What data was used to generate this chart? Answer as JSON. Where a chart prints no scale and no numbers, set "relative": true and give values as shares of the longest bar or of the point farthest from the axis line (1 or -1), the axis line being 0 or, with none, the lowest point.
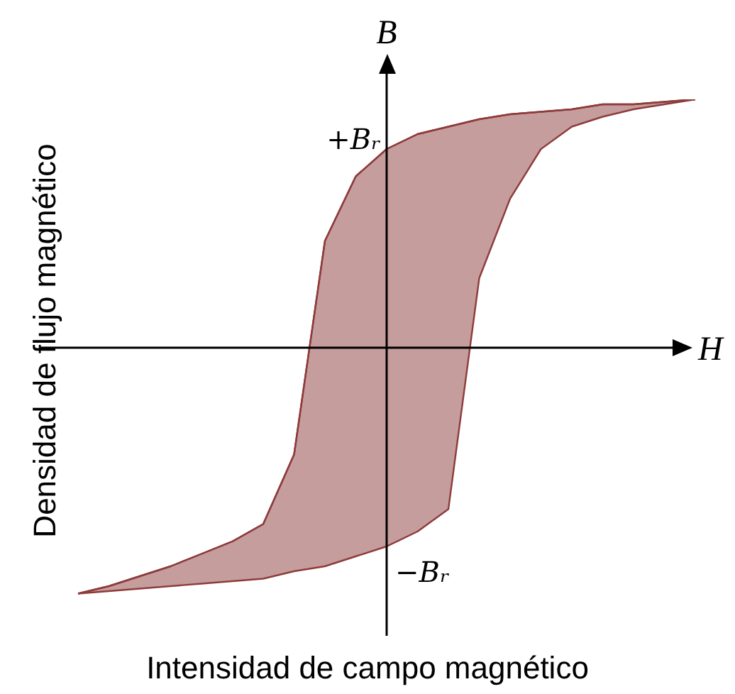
{
  "chart_data": {
    "type": "line",
    "relative": true,
    "xlabel": "Intensidad de campo magnético",
    "ylabel": "Densidad de flujo magnético",
    "categories": [
      null,
      null,
      null,
      null,
      null,
      null,
      null,
      null,
      null,
      null,
      null,
      null,
      null,
      null,
      null,
      null,
      null,
      null,
      null,
      null,
      null
    ],
    "series": [
      {
        "color": "#8e3b3b",
        "values": [
          -0.99,
          -0.96,
          -0.92,
          -0.88,
          -0.83,
          -0.78,
          -0.71,
          -0.43,
          0.43,
          0.69,
          0.8,
          0.86,
          0.89,
          0.92,
          0.94,
          0.95,
          0.96,
          0.98,
          0.98,
          0.99,
          1
        ],
        "upper": [
          -0.99,
          -0.96,
          -0.92,
          -0.88,
          -0.83,
          -0.78,
          -0.71,
          -0.43,
          0.43,
          0.69,
          0.8,
          0.86,
          0.89,
          0.92,
          0.94,
          0.95,
          0.96,
          0.98,
          0.98,
          0.99,
          1
        ],
        "lower": [
          -0.99,
          -0.98,
          -0.97,
          -0.96,
          -0.95,
          -0.94,
          -0.93,
          -0.9,
          -0.88,
          -0.84,
          -0.8,
          -0.74,
          -0.65,
          0.28,
          0.6,
          0.8,
          0.89,
          0.93,
          0.96,
          0.98,
          1
        ]
      }
    ],
    "annotations": [
      "B",
      "H",
      "+Bᵣ",
      "−Bᵣ"
    ],
    "marker": "none",
    "line_style": "solid"
  }
}
